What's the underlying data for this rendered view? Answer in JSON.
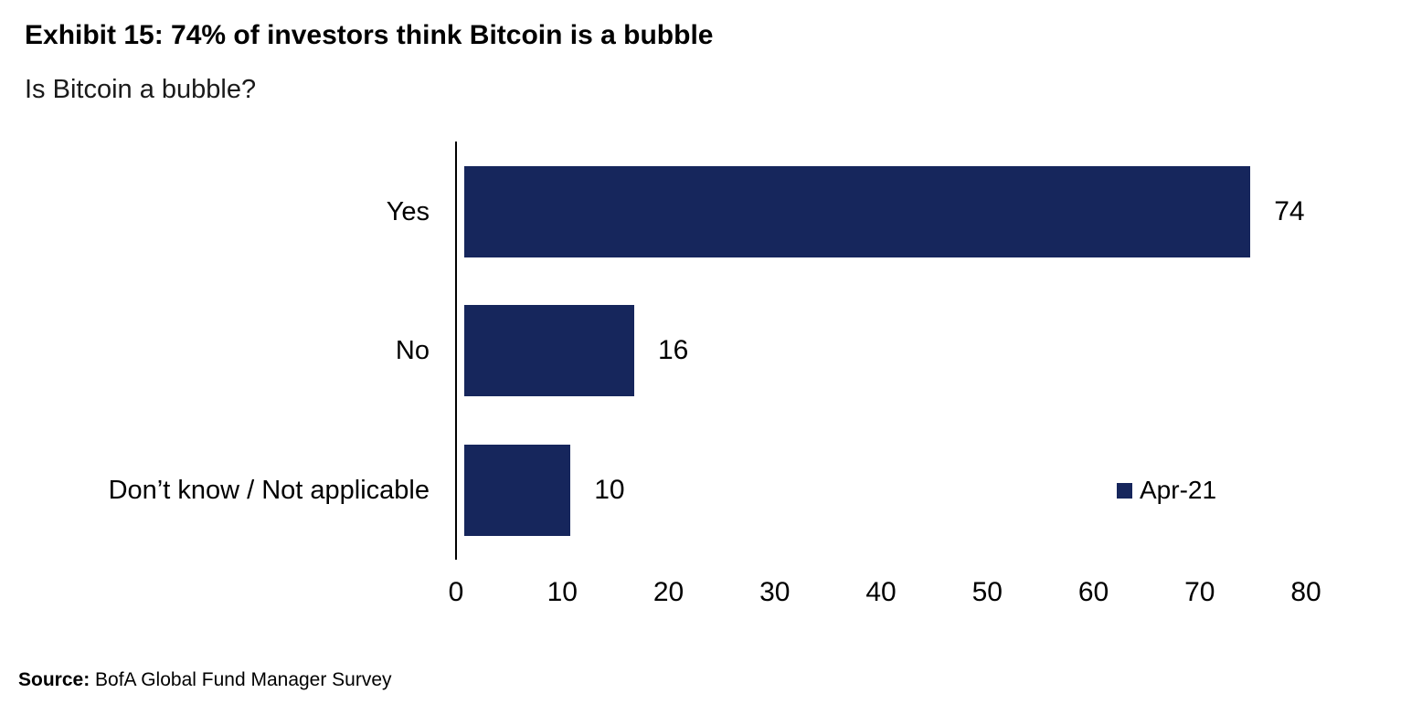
{
  "header": {
    "title": "Exhibit 15: 74% of investors think Bitcoin is a bubble",
    "subtitle": "Is Bitcoin a bubble?"
  },
  "chart_data": {
    "type": "bar",
    "orientation": "horizontal",
    "title": "Exhibit 15: 74% of investors think Bitcoin is a bubble",
    "subtitle": "Is Bitcoin a bubble?",
    "categories": [
      "Yes",
      "No",
      "Don’t know / Not applicable"
    ],
    "values": [
      74,
      16,
      10
    ],
    "series": [
      {
        "name": "Apr-21",
        "values": [
          74,
          16,
          10
        ]
      }
    ],
    "x_ticks": [
      0,
      10,
      20,
      30,
      40,
      50,
      60,
      70,
      80
    ],
    "xlim": [
      0,
      80
    ],
    "xlabel": "",
    "ylabel": "",
    "grid": false,
    "legend_position": "middle-right",
    "bar_color": "#16265C"
  },
  "footer": {
    "source_label": "Source:",
    "source_text": " BofA Global Fund Manager Survey"
  }
}
